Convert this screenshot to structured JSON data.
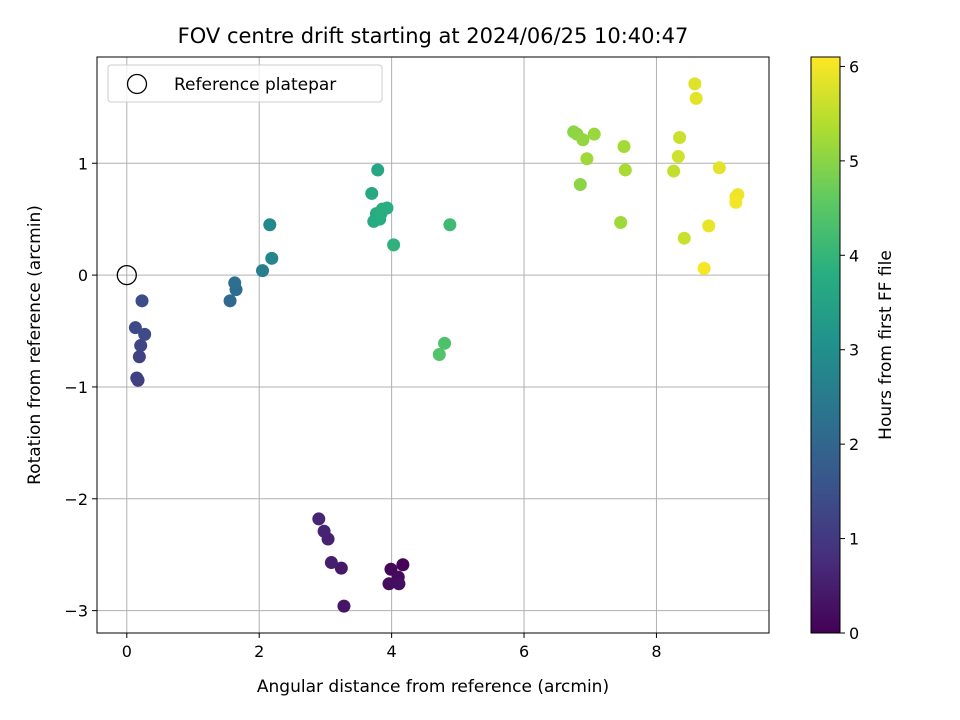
{
  "chart_data": {
    "type": "scatter",
    "title": "FOV centre drift starting at 2024/06/25 10:40:47",
    "xlabel": "Angular distance from reference (arcmin)",
    "ylabel": "Rotation from reference (arcmin)",
    "xlim": [
      -0.45,
      9.7
    ],
    "ylim": [
      -3.2,
      1.95
    ],
    "xticks": [
      0,
      2,
      4,
      6,
      8
    ],
    "yticks": [
      -3,
      -2,
      -1,
      0,
      1
    ],
    "xtick_labels": [
      "0",
      "2",
      "4",
      "6",
      "8"
    ],
    "ytick_labels": [
      "−3",
      "−2",
      "−1",
      "0",
      "1"
    ],
    "grid": true,
    "legend": {
      "placement": "top-left",
      "label": "Reference platepar"
    },
    "reference_point": {
      "x": 0,
      "y": 0
    },
    "colorbar": {
      "label": "Hours from first FF file",
      "range": [
        0,
        6.1
      ],
      "ticks": [
        0,
        1,
        2,
        3,
        4,
        5,
        6
      ],
      "tick_labels": [
        "0",
        "1",
        "2",
        "3",
        "4",
        "5",
        "6"
      ],
      "colormap": "viridis"
    },
    "points": [
      {
        "x": 4.17,
        "y": -2.59,
        "c": 0.05
      },
      {
        "x": 3.99,
        "y": -2.63,
        "c": 0.1
      },
      {
        "x": 4.1,
        "y": -2.7,
        "c": 0.15
      },
      {
        "x": 3.96,
        "y": -2.76,
        "c": 0.2
      },
      {
        "x": 4.11,
        "y": -2.76,
        "c": 0.25
      },
      {
        "x": 3.28,
        "y": -2.96,
        "c": 0.35
      },
      {
        "x": 3.24,
        "y": -2.62,
        "c": 0.4
      },
      {
        "x": 3.09,
        "y": -2.57,
        "c": 0.5
      },
      {
        "x": 3.04,
        "y": -2.36,
        "c": 0.55
      },
      {
        "x": 2.98,
        "y": -2.29,
        "c": 0.6
      },
      {
        "x": 2.9,
        "y": -2.18,
        "c": 0.65
      },
      {
        "x": 0.17,
        "y": -0.94,
        "c": 1.1
      },
      {
        "x": 0.15,
        "y": -0.92,
        "c": 1.15
      },
      {
        "x": 0.19,
        "y": -0.73,
        "c": 1.2
      },
      {
        "x": 0.21,
        "y": -0.63,
        "c": 1.25
      },
      {
        "x": 0.13,
        "y": -0.47,
        "c": 1.35
      },
      {
        "x": 0.27,
        "y": -0.53,
        "c": 1.4
      },
      {
        "x": 0.23,
        "y": -0.23,
        "c": 1.45
      },
      {
        "x": 1.56,
        "y": -0.23,
        "c": 2.05
      },
      {
        "x": 1.65,
        "y": -0.13,
        "c": 2.15
      },
      {
        "x": 1.63,
        "y": -0.07,
        "c": 2.2
      },
      {
        "x": 2.05,
        "y": 0.04,
        "c": 2.6
      },
      {
        "x": 2.19,
        "y": 0.15,
        "c": 2.75
      },
      {
        "x": 2.16,
        "y": 0.45,
        "c": 2.85
      },
      {
        "x": 3.79,
        "y": 0.94,
        "c": 3.6
      },
      {
        "x": 3.7,
        "y": 0.73,
        "c": 3.65
      },
      {
        "x": 3.73,
        "y": 0.48,
        "c": 3.7
      },
      {
        "x": 3.77,
        "y": 0.55,
        "c": 3.72
      },
      {
        "x": 3.82,
        "y": 0.5,
        "c": 3.74
      },
      {
        "x": 3.86,
        "y": 0.59,
        "c": 3.78
      },
      {
        "x": 3.84,
        "y": 0.55,
        "c": 3.8
      },
      {
        "x": 3.93,
        "y": 0.6,
        "c": 3.82
      },
      {
        "x": 4.03,
        "y": 0.27,
        "c": 3.9
      },
      {
        "x": 4.88,
        "y": 0.45,
        "c": 4.15
      },
      {
        "x": 4.8,
        "y": -0.61,
        "c": 4.35
      },
      {
        "x": 4.72,
        "y": -0.71,
        "c": 4.4
      },
      {
        "x": 6.75,
        "y": 1.28,
        "c": 5.0
      },
      {
        "x": 6.8,
        "y": 1.26,
        "c": 5.05
      },
      {
        "x": 6.89,
        "y": 1.21,
        "c": 5.1
      },
      {
        "x": 7.06,
        "y": 1.26,
        "c": 5.15
      },
      {
        "x": 6.95,
        "y": 1.04,
        "c": 5.2
      },
      {
        "x": 6.85,
        "y": 0.81,
        "c": 5.0
      },
      {
        "x": 7.51,
        "y": 1.15,
        "c": 5.25
      },
      {
        "x": 7.53,
        "y": 0.94,
        "c": 5.3
      },
      {
        "x": 7.46,
        "y": 0.47,
        "c": 5.2
      },
      {
        "x": 8.35,
        "y": 1.23,
        "c": 5.6
      },
      {
        "x": 8.33,
        "y": 1.06,
        "c": 5.65
      },
      {
        "x": 8.26,
        "y": 0.93,
        "c": 5.55
      },
      {
        "x": 8.42,
        "y": 0.33,
        "c": 5.6
      },
      {
        "x": 8.58,
        "y": 1.71,
        "c": 5.8
      },
      {
        "x": 8.6,
        "y": 1.58,
        "c": 5.85
      },
      {
        "x": 8.95,
        "y": 0.96,
        "c": 5.85
      },
      {
        "x": 8.79,
        "y": 0.44,
        "c": 5.9
      },
      {
        "x": 9.23,
        "y": 0.72,
        "c": 5.95
      },
      {
        "x": 9.2,
        "y": 0.7,
        "c": 5.97
      },
      {
        "x": 9.2,
        "y": 0.65,
        "c": 6.0
      },
      {
        "x": 8.72,
        "y": 0.06,
        "c": 6.05
      }
    ]
  }
}
